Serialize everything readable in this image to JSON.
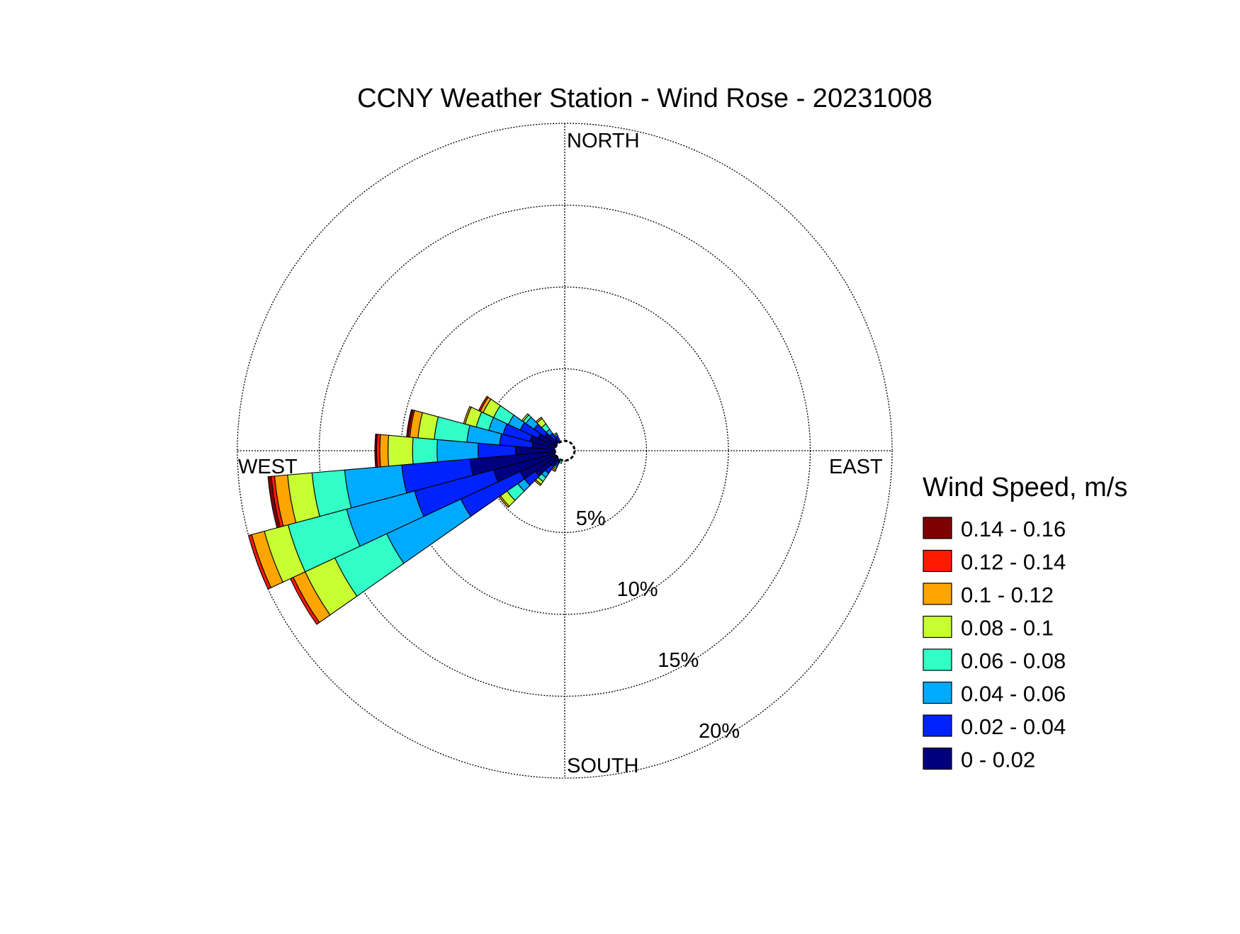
{
  "chart_data": {
    "type": "wind_rose",
    "title": "CCNY Weather Station - Wind Rose - 20231008",
    "direction_labels": {
      "north": "NORTH",
      "south": "SOUTH",
      "east": "EAST",
      "west": "WEST"
    },
    "radial_unit": "%",
    "radial_ticks": [
      5,
      10,
      15,
      20
    ],
    "radial_tick_labels": [
      "5%",
      "10%",
      "15%",
      "20%"
    ],
    "radial_max": 20,
    "calm_radius": 0.6,
    "legend": {
      "title": "Wind Speed, m/s",
      "placement": "right",
      "bins": [
        {
          "label": "0.14 - 0.16",
          "color": "#7f0000"
        },
        {
          "label": "0.12 - 0.14",
          "color": "#ff1a00"
        },
        {
          "label": "0.1 - 0.12",
          "color": "#ffa500"
        },
        {
          "label": "0.08 - 0.1",
          "color": "#c8ff32"
        },
        {
          "label": "0.06 - 0.08",
          "color": "#32ffc8"
        },
        {
          "label": "0.04 - 0.06",
          "color": "#00aaff"
        },
        {
          "label": "0.02 - 0.04",
          "color": "#0022ff"
        },
        {
          "label": "0 - 0.02",
          "color": "#00007f"
        }
      ]
    },
    "sector_width_deg": 10,
    "speed_bins": [
      "0 - 0.02",
      "0.02 - 0.04",
      "0.04 - 0.06",
      "0.06 - 0.08",
      "0.08 - 0.1",
      "0.1 - 0.12",
      "0.12 - 0.14",
      "0.14 - 0.16"
    ],
    "sectors": [
      {
        "direction_deg": 200,
        "cumulative_pct": [
          0.5,
          0.6,
          0.6,
          0.8,
          0.8,
          0.8,
          0.8,
          0.8
        ]
      },
      {
        "direction_deg": 210,
        "cumulative_pct": [
          0.8,
          1.0,
          1.1,
          1.2,
          1.3,
          1.4,
          1.4,
          1.4
        ]
      },
      {
        "direction_deg": 220,
        "cumulative_pct": [
          1.2,
          1.7,
          2.0,
          2.3,
          2.5,
          2.6,
          2.6,
          2.6
        ]
      },
      {
        "direction_deg": 230,
        "cumulative_pct": [
          2.2,
          3.0,
          3.5,
          4.3,
          4.8,
          4.9,
          4.9,
          4.9
        ]
      },
      {
        "direction_deg": 240,
        "cumulative_pct": [
          3.0,
          7.0,
          12.0,
          15.5,
          17.5,
          18.3,
          18.5,
          18.5
        ]
      },
      {
        "direction_deg": 250,
        "cumulative_pct": [
          4.5,
          9.5,
          13.8,
          17.5,
          19.0,
          19.8,
          20.0,
          20.0
        ]
      },
      {
        "direction_deg": 260,
        "cumulative_pct": [
          5.8,
          10.0,
          13.5,
          15.5,
          17.0,
          17.8,
          18.0,
          18.2
        ]
      },
      {
        "direction_deg": 270,
        "cumulative_pct": [
          3.0,
          5.3,
          7.8,
          9.3,
          10.8,
          11.3,
          11.5,
          11.6
        ]
      },
      {
        "direction_deg": 280,
        "cumulative_pct": [
          2.0,
          4.0,
          6.0,
          8.0,
          9.0,
          9.5,
          9.6,
          9.7
        ]
      },
      {
        "direction_deg": 290,
        "cumulative_pct": [
          2.2,
          3.9,
          4.8,
          5.6,
          6.3,
          6.4,
          6.4,
          6.4
        ]
      },
      {
        "direction_deg": 300,
        "cumulative_pct": [
          1.8,
          3.0,
          3.8,
          4.8,
          5.5,
          5.7,
          5.8,
          5.8
        ]
      },
      {
        "direction_deg": 310,
        "cumulative_pct": [
          1.5,
          2.3,
          2.9,
          3.1,
          3.2,
          3.2,
          3.2,
          3.2
        ]
      },
      {
        "direction_deg": 320,
        "cumulative_pct": [
          0.9,
          1.3,
          1.6,
          2.0,
          2.4,
          2.5,
          2.5,
          2.5
        ]
      },
      {
        "direction_deg": 330,
        "cumulative_pct": [
          0.6,
          1.0,
          1.1,
          1.2,
          1.2,
          1.2,
          1.2,
          1.2
        ]
      },
      {
        "direction_deg": 180,
        "cumulative_pct": [
          0.2,
          0.2,
          0.2,
          0.3,
          0.3,
          0.3,
          0.3,
          0.3
        ]
      }
    ],
    "grid": true
  }
}
